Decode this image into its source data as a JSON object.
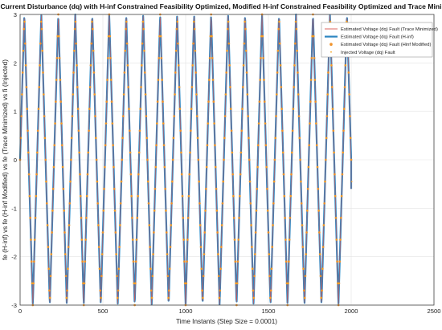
{
  "chart_data": {
    "type": "line",
    "title": "Reconstructed Current Disturbance (dq) with H-inf Constrained Feasibility Optimized, Modified H-inf Constrained Feasibility Optimized and Trace Minimized SMO Gains",
    "xlabel": "Time Instants (Step Size = 0.0001)",
    "ylabel": "fe (H-inf) vs fe (H-inf Modified) vs fe (Trace Minimized) vs fi (Injected)",
    "xlim": [
      0,
      2500
    ],
    "ylim": [
      -3,
      3
    ],
    "xticks": [
      "0",
      "500",
      "1000",
      "1500",
      "2000",
      "2500"
    ],
    "yticks": [
      "-3",
      "-2",
      "-1",
      "0",
      "1",
      "2",
      "3"
    ],
    "grid": true,
    "legend_position": "top-right",
    "signal": {
      "amplitude": 3,
      "x_start": 0,
      "x_end": 2000,
      "end_value": -0.6,
      "peaks_count": 20,
      "description_note": ""
    },
    "series": [
      {
        "name": "Estimated Voltage (dq) Fault (Trace Minimized)",
        "color": "#d9534f",
        "style": "line"
      },
      {
        "name": "Estimated Voltage (dq) Fault (H-inf)",
        "color": "#2e86c1",
        "style": "thick-line"
      },
      {
        "name": "Estimated Voltage (dq) Fault (Hinf Modified)",
        "color": "#f0932b",
        "style": "asterisk-marker"
      },
      {
        "name": "Injected Voltage (dq) Fault",
        "color": "#f5a623",
        "style": "dot"
      }
    ]
  }
}
